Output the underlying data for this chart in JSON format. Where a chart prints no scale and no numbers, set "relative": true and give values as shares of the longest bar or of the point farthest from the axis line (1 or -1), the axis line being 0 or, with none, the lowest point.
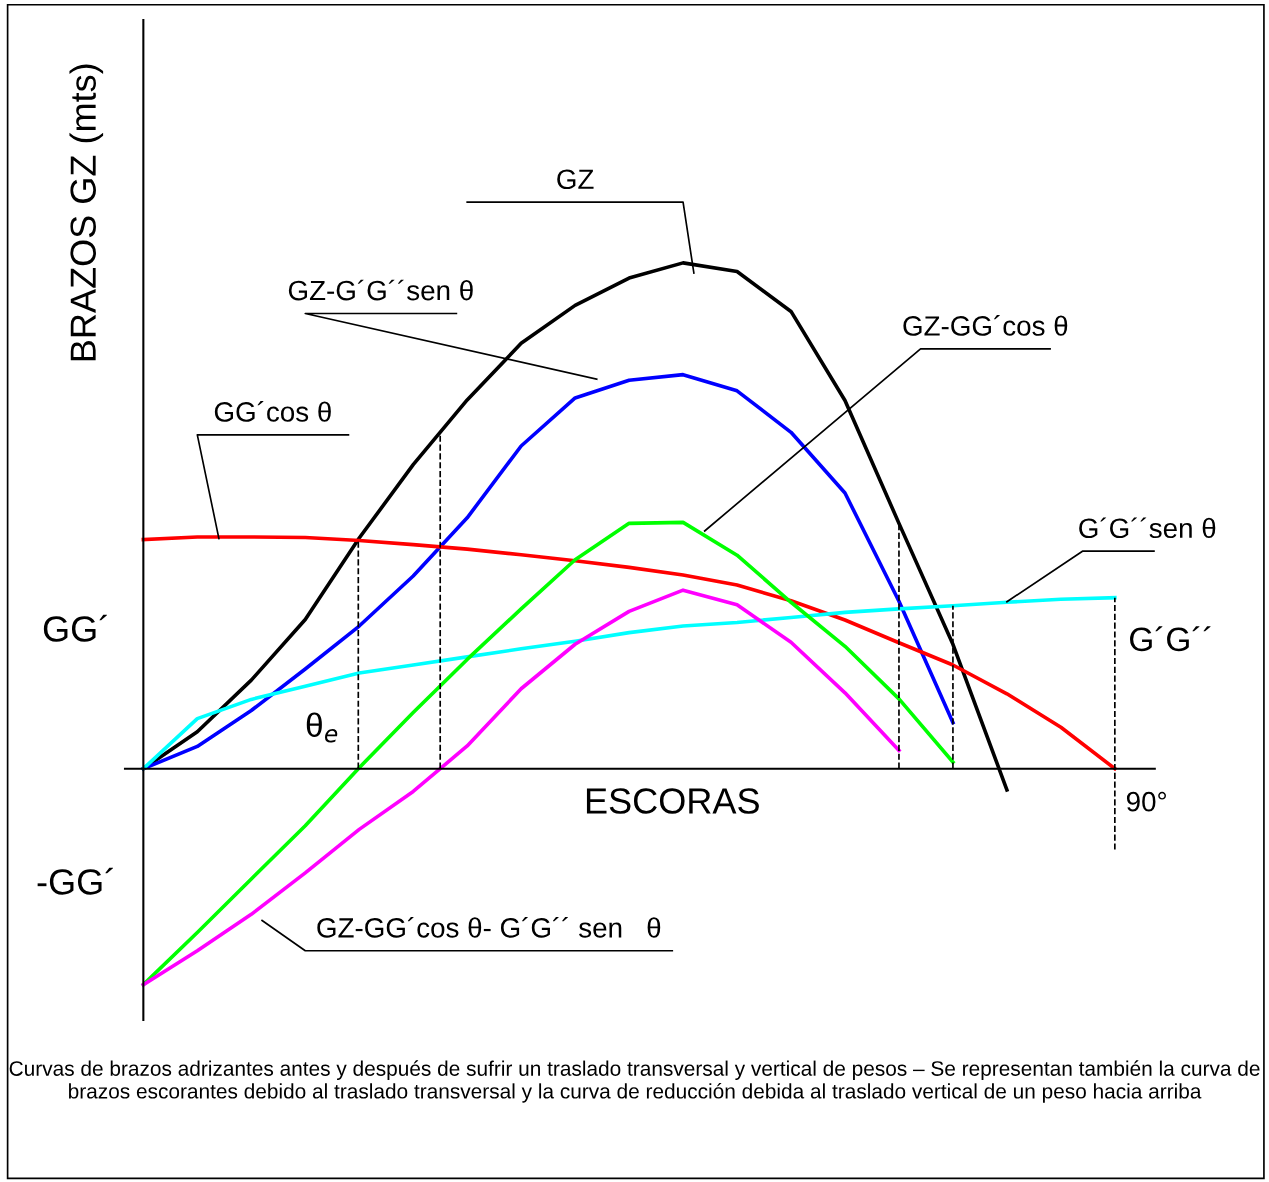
{
  "chart_data": {
    "type": "line",
    "relative": true,
    "ylabel": "BRAZOS GZ (mts)",
    "xlabel": "ESCORAS",
    "legend": false,
    "marker": "none",
    "line_style": "solid",
    "categories": [
      null,
      null,
      null,
      null,
      null,
      null,
      null,
      null,
      null,
      null,
      null,
      null,
      null,
      null,
      null,
      null,
      null,
      null,
      null
    ],
    "series": [
      {
        "name": "GZ",
        "color": "#000000",
        "values": [
          0,
          0.073,
          0.175,
          0.295,
          0.456,
          0.601,
          0.729,
          0.841,
          0.916,
          0.97,
          1,
          0.983,
          0.904,
          0.728,
          0.485,
          0.246,
          -0.042,
          null,
          null
        ]
      },
      {
        "name": "GZ-G´G´´sen θ",
        "color": "#0000ff",
        "values": [
          0,
          0.044,
          0.115,
          0.197,
          0.282,
          0.381,
          0.496,
          0.638,
          0.733,
          0.768,
          0.779,
          0.747,
          0.665,
          0.545,
          0.331,
          0.091,
          null,
          null,
          null
        ]
      },
      {
        "name": "GG´cos θ",
        "color": "#ff0000",
        "values": [
          0.453,
          0.458,
          0.458,
          0.457,
          0.451,
          0.443,
          0.434,
          0.423,
          0.411,
          0.398,
          0.383,
          0.363,
          0.332,
          0.294,
          0.249,
          0.205,
          0.148,
          0.082,
          0
        ]
      },
      {
        "name": "G´G´´sen θ",
        "color": "#00ffff",
        "values": [
          0,
          0.099,
          0.137,
          0.163,
          0.189,
          0.205,
          0.221,
          0.237,
          0.252,
          0.269,
          0.282,
          0.289,
          0.299,
          0.309,
          0.316,
          0.322,
          0.329,
          0.335,
          0.338
        ]
      },
      {
        "name": "GZ-GG´cos θ",
        "color": "#00ff00",
        "values": [
          -0.427,
          -0.324,
          -0.218,
          -0.113,
          0.002,
          0.111,
          0.216,
          0.316,
          0.413,
          0.485,
          0.487,
          0.422,
          0.329,
          0.242,
          0.138,
          0.013,
          null,
          null,
          null
        ]
      },
      {
        "name": "GZ-GG´cos θ- G´G´´ sen   θ",
        "color": "#ff00ff",
        "values": [
          -0.427,
          -0.36,
          -0.288,
          -0.206,
          -0.12,
          -0.045,
          0.045,
          0.158,
          0.246,
          0.311,
          0.353,
          0.324,
          0.25,
          0.15,
          0.036,
          null,
          null,
          null,
          null
        ]
      }
    ],
    "annotations": [
      "GG´",
      "-GG´",
      "θ$_{e}$",
      "G´G´´",
      "90°",
      "Curvas de brazos adrizantes antes y después de sufrir un traslado transversal y vertical de pesos – Se representan también la curva de brazos escorantes debido al traslado transversal y la curva de reducción debida al traslado vertical de un peso hacia arriba"
    ]
  }
}
